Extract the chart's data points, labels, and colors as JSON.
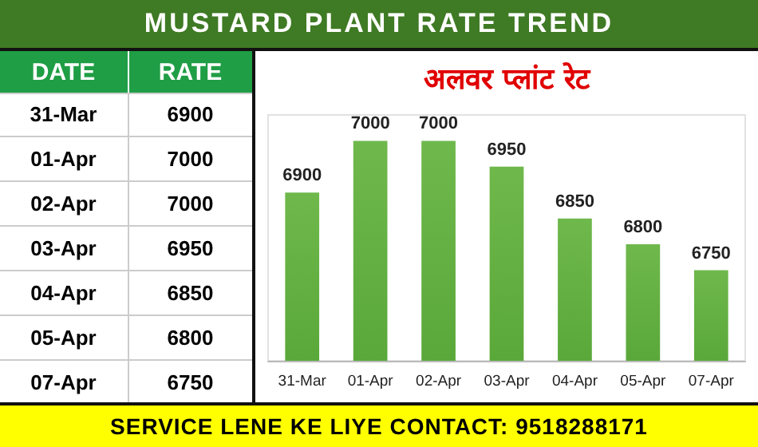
{
  "chart_data": {
    "type": "bar",
    "title": "MUSTARD PLANT RATE TREND",
    "subtitle": "अलवर प्लांट रेट",
    "categories": [
      "31-Mar",
      "01-Apr",
      "02-Apr",
      "03-Apr",
      "04-Apr",
      "05-Apr",
      "07-Apr"
    ],
    "values": [
      6900,
      7000,
      7000,
      6950,
      6850,
      6800,
      6750
    ],
    "value_labels": [
      "6900",
      "7000",
      "7000",
      "6950",
      "6850",
      "6800",
      "6750"
    ],
    "color": "#5aa83a",
    "ylim": [
      6575,
      7050
    ],
    "annotations": [
      "DATE",
      "RATE",
      "SERVICE LENE KE LIYE CONTACT: 9518288171"
    ]
  }
}
